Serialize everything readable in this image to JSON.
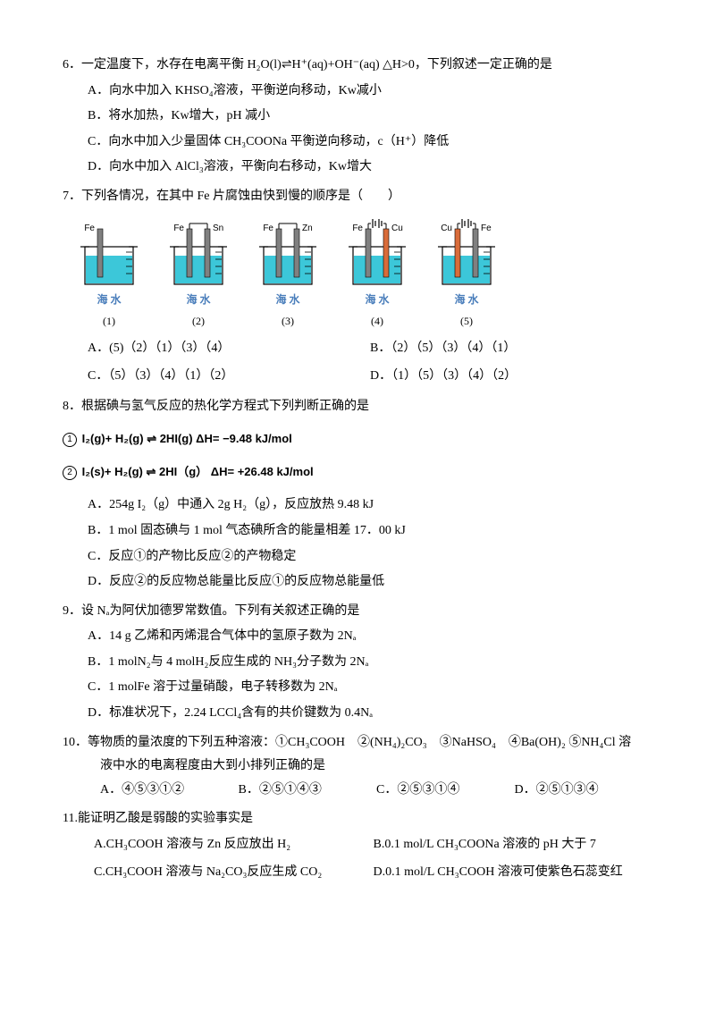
{
  "q6": {
    "stem": "6．一定温度下，水存在电离平衡 H₂O(l)⇌H⁺(aq)+OH⁻(aq) △H>0，下列叙述一定正确的是",
    "A": "A．向水中加入 KHSO₄溶液，平衡逆向移动，Kw减小",
    "B": "B．将水加热，Kw增大，pH 减小",
    "C": "C．向水中加入少量固体 CH₃COONa 平衡逆向移动，c（H⁺）降低",
    "D": "D．向水中加入 AlCl₃溶液，平衡向右移动，Kw增大"
  },
  "q7": {
    "stem": "7．下列各情况，在其中 Fe 片腐蚀由快到慢的顺序是（　　）",
    "diagrams": [
      {
        "left": "Fe",
        "right": "",
        "leftColor": "#808080",
        "rightColor": "",
        "num": "(1)",
        "wire": false,
        "battery": false
      },
      {
        "left": "Fe",
        "right": "Sn",
        "leftColor": "#808080",
        "rightColor": "#808080",
        "num": "(2)",
        "wire": true,
        "battery": false
      },
      {
        "left": "Fe",
        "right": "Zn",
        "leftColor": "#808080",
        "rightColor": "#808080",
        "num": "(3)",
        "wire": true,
        "battery": false
      },
      {
        "left": "Fe",
        "right": "Cu",
        "leftColor": "#808080",
        "rightColor": "#d96c3a",
        "num": "(4)",
        "wire": true,
        "battery": true,
        "batteryDir": "neg-left"
      },
      {
        "left": "Cu",
        "right": "Fe",
        "leftColor": "#d96c3a",
        "rightColor": "#808080",
        "num": "(5)",
        "wire": true,
        "battery": true,
        "batteryDir": "neg-right"
      }
    ],
    "waterLabel": "海 水",
    "A": "A．(5)（2）（1）（3）（4）",
    "B": "B．（2）（5）（3）（4）（1）",
    "C": "C．（5）（3）（4）（1）（2）",
    "D": "D．（1）（5）（3）（4）（2）"
  },
  "q8": {
    "stem": "8．根据碘与氢气反应的热化学方程式下列判断正确的是",
    "eq1_num": "1",
    "eq1": "I₂(g)+ H₂(g) ⇌ 2HI(g)  ΔH= −9.48 kJ/mol",
    "eq2_num": "2",
    "eq2": "I₂(s)+ H₂(g) ⇌ 2HI（g） ΔH= +26.48 kJ/mol",
    "A": "A．254g I₂（g）中通入 2g H₂（g），反应放热 9.48 kJ",
    "B": "B．1 mol 固态碘与 1 mol 气态碘所含的能量相差 17．00 kJ",
    "C": "C．反应①的产物比反应②的产物稳定",
    "D": "D．反应②的反应物总能量比反应①的反应物总能量低"
  },
  "q9": {
    "stem": "9．设 Nₐ为阿伏加德罗常数值。下列有关叙述正确的是",
    "A": "A．14 g 乙烯和丙烯混合气体中的氢原子数为 2Nₐ",
    "B": "B．1 molN₂与 4 molH₂反应生成的 NH₃分子数为 2Nₐ",
    "C": "C．1 molFe 溶于过量硝酸，电子转移数为 2Nₐ",
    "D": "D．标准状况下，2.24 LCCl₄含有的共价键数为 0.4Nₐ"
  },
  "q10": {
    "stem1": "10．等物质的量浓度的下列五种溶液：①CH₃COOH　②(NH₄)₂CO₃　③NaHSO₄　④Ba(OH)₂ ⑤NH₄Cl 溶",
    "stem2": "液中水的电离程度由大到小排列正确的是",
    "A": "A．④⑤③①②",
    "B": "B．②⑤①④③",
    "C": "C．②⑤③①④",
    "D": "D．②⑤①③④"
  },
  "q11": {
    "stem": "11.能证明乙酸是弱酸的实验事实是",
    "A": "A.CH₃COOH 溶液与 Zn 反应放出 H₂",
    "B": "B.0.1 mol/L CH₃COONa 溶液的 pH 大于 7",
    "C": "C.CH₃COOH 溶液与 Na₂CO₃反应生成 CO₂",
    "D": "D.0.1 mol/L CH₃COOH 溶液可使紫色石蕊变红"
  },
  "colors": {
    "beakerOutline": "#000000",
    "liquid": "#3cc7d9",
    "electrodeGray": "#808080",
    "electrodeCu": "#d96c3a",
    "labelBlue": "#4a7ebb"
  }
}
